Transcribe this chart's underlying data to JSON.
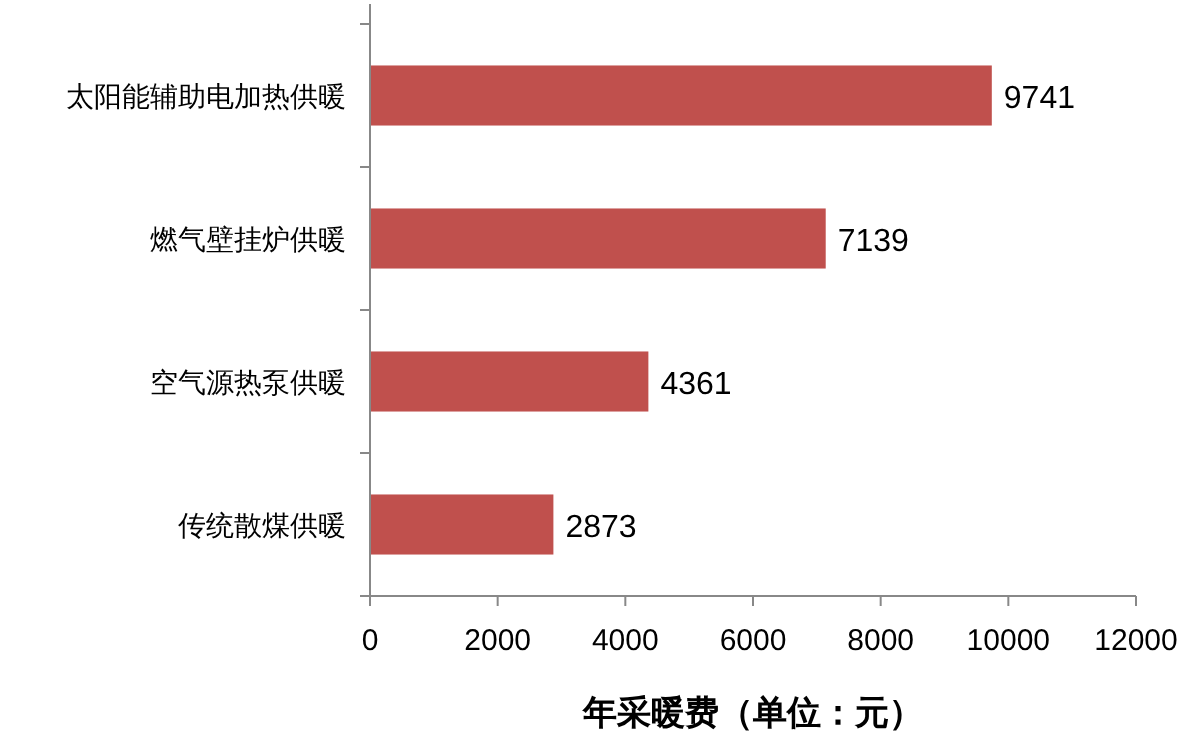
{
  "chart_data": {
    "type": "bar",
    "orientation": "horizontal",
    "xlabel": "年采暖费（单位：元）",
    "categories": [
      "太阳能辅助电加热供暖",
      "燃气壁挂炉供暖",
      "空气源热泵供暖",
      "传统散煤供暖"
    ],
    "values": [
      9741,
      7139,
      4361,
      2873
    ],
    "color": "#c0504d",
    "data_labels": true,
    "xlim": [
      0,
      12000
    ],
    "xticks": [
      0,
      2000,
      4000,
      6000,
      8000,
      10000,
      12000
    ]
  }
}
